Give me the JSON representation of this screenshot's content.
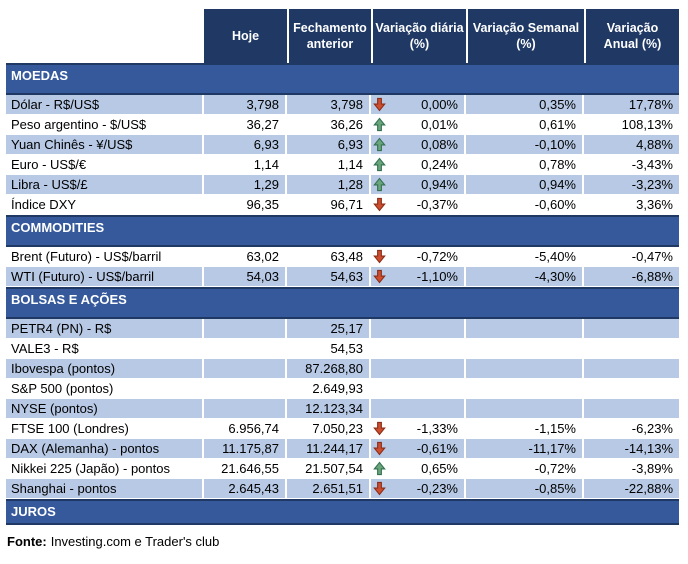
{
  "colors": {
    "header-bg": "#1F3864",
    "header-text": "#FFFFFF",
    "band-bg": "#35599B",
    "row-alt-bg": "#B7C9E5",
    "text": "#000000",
    "up-arrow-fill": "#69A47C",
    "up-arrow-stroke": "#33704F",
    "down-arrow-fill": "#CC4E2E",
    "down-arrow-stroke": "#8A2E19"
  },
  "table": {
    "columns": [
      {
        "line1": "Hoje",
        "line2": ""
      },
      {
        "line1": "Fechamento",
        "line2": "anterior"
      },
      {
        "line1": "Variação diária",
        "line2": "(%)"
      },
      {
        "line1": "Variação Semanal",
        "line2": "(%)"
      },
      {
        "line1": "Variação",
        "line2": "Anual (%)"
      }
    ],
    "sections": [
      {
        "title": "MOEDAS",
        "rows": [
          {
            "label": "Dólar - R$/US$",
            "hoje": "3,798",
            "fechamento": "3,798",
            "arrow": "down",
            "var_diaria": "0,00%",
            "var_semanal": "0,35%",
            "var_anual": "17,78%",
            "shaded": true
          },
          {
            "label": "Peso argentino - $/US$",
            "hoje": "36,27",
            "fechamento": "36,26",
            "arrow": "up",
            "var_diaria": "0,01%",
            "var_semanal": "0,61%",
            "var_anual": "108,13%",
            "shaded": false
          },
          {
            "label": "Yuan Chinês - ¥/US$",
            "hoje": "6,93",
            "fechamento": "6,93",
            "arrow": "up",
            "var_diaria": "0,08%",
            "var_semanal": "-0,10%",
            "var_anual": "4,88%",
            "shaded": true
          },
          {
            "label": "Euro - US$/€",
            "hoje": "1,14",
            "fechamento": "1,14",
            "arrow": "up",
            "var_diaria": "0,24%",
            "var_semanal": "0,78%",
            "var_anual": "-3,43%",
            "shaded": false
          },
          {
            "label": "Libra - US$/£",
            "hoje": "1,29",
            "fechamento": "1,28",
            "arrow": "up",
            "var_diaria": "0,94%",
            "var_semanal": "0,94%",
            "var_anual": "-3,23%",
            "shaded": true
          },
          {
            "label": "Índice DXY",
            "hoje": "96,35",
            "fechamento": "96,71",
            "arrow": "down",
            "var_diaria": "-0,37%",
            "var_semanal": "-0,60%",
            "var_anual": "3,36%",
            "shaded": false
          }
        ]
      },
      {
        "title": "COMMODITIES",
        "rows": [
          {
            "label": "Brent (Futuro) - US$/barril",
            "hoje": "63,02",
            "fechamento": "63,48",
            "arrow": "down",
            "var_diaria": "-0,72%",
            "var_semanal": "-5,40%",
            "var_anual": "-0,47%",
            "shaded": false
          },
          {
            "label": "WTI (Futuro) - US$/barril",
            "hoje": "54,03",
            "fechamento": "54,63",
            "arrow": "down",
            "var_diaria": "-1,10%",
            "var_semanal": "-4,30%",
            "var_anual": "-6,88%",
            "shaded": true
          }
        ]
      },
      {
        "title": "BOLSAS E AÇÕES",
        "rows": [
          {
            "label": "PETR4 (PN) - R$",
            "hoje": "",
            "fechamento": "25,17",
            "arrow": "",
            "var_diaria": "",
            "var_semanal": "",
            "var_anual": "",
            "shaded": true
          },
          {
            "label": "VALE3 - R$",
            "hoje": "",
            "fechamento": "54,53",
            "arrow": "",
            "var_diaria": "",
            "var_semanal": "",
            "var_anual": "",
            "shaded": false
          },
          {
            "label": "Ibovespa (pontos)",
            "hoje": "",
            "fechamento": "87.268,80",
            "arrow": "",
            "var_diaria": "",
            "var_semanal": "",
            "var_anual": "",
            "shaded": true
          },
          {
            "label": "S&P 500 (pontos)",
            "hoje": "",
            "fechamento": "2.649,93",
            "arrow": "",
            "var_diaria": "",
            "var_semanal": "",
            "var_anual": "",
            "shaded": false
          },
          {
            "label": "NYSE (pontos)",
            "hoje": "",
            "fechamento": "12.123,34",
            "arrow": "",
            "var_diaria": "",
            "var_semanal": "",
            "var_anual": "",
            "shaded": true
          },
          {
            "label": "FTSE 100 (Londres)",
            "hoje": "6.956,74",
            "fechamento": "7.050,23",
            "arrow": "down",
            "var_diaria": "-1,33%",
            "var_semanal": "-1,15%",
            "var_anual": "-6,23%",
            "shaded": false
          },
          {
            "label": "DAX (Alemanha) - pontos",
            "hoje": "11.175,87",
            "fechamento": "11.244,17",
            "arrow": "down",
            "var_diaria": "-0,61%",
            "var_semanal": "-11,17%",
            "var_anual": "-14,13%",
            "shaded": true
          },
          {
            "label": "Nikkei 225 (Japão) - pontos",
            "hoje": "21.646,55",
            "fechamento": "21.507,54",
            "arrow": "up",
            "var_diaria": "0,65%",
            "var_semanal": "-0,72%",
            "var_anual": "-3,89%",
            "shaded": false
          },
          {
            "label": "Shanghai - pontos",
            "hoje": "2.645,43",
            "fechamento": "2.651,51",
            "arrow": "down",
            "var_diaria": "-0,23%",
            "var_semanal": "-0,85%",
            "var_anual": "-22,88%",
            "shaded": true
          }
        ]
      },
      {
        "title": "JUROS",
        "rows": []
      }
    ]
  },
  "footer": {
    "source_label": "Fonte:",
    "source_text": "Investing.com e Trader's club"
  }
}
